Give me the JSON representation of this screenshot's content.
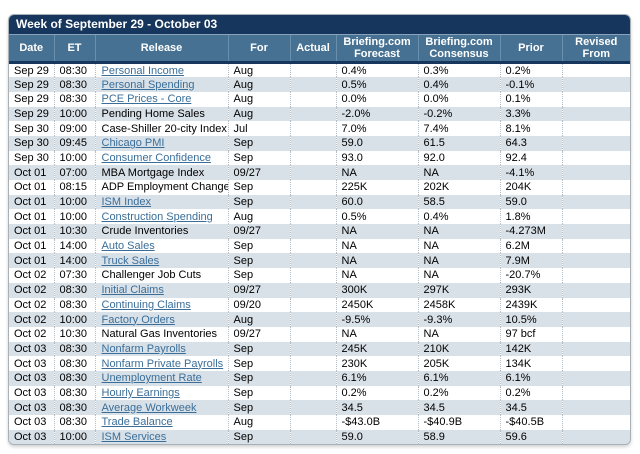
{
  "colors": {
    "title_bar": "#16365d",
    "header_bar": "#467192",
    "row_stripe": "#d9e1e8",
    "link": "#3a6e99"
  },
  "table": {
    "title": "Week of September 29 - October 03",
    "columns": [
      {
        "key": "date",
        "label": "Date"
      },
      {
        "key": "et",
        "label": "ET"
      },
      {
        "key": "release",
        "label": "Release"
      },
      {
        "key": "for",
        "label": "For"
      },
      {
        "key": "actual",
        "label": "Actual"
      },
      {
        "key": "forecast",
        "label": "Briefing.com Forecast"
      },
      {
        "key": "consensus",
        "label": "Briefing.com Consensus"
      },
      {
        "key": "prior",
        "label": "Prior"
      },
      {
        "key": "revised",
        "label": "Revised From"
      }
    ],
    "rows": [
      {
        "date": "Sep 29",
        "et": "08:30",
        "release": "Personal Income",
        "link": true,
        "for": "Aug",
        "actual": "",
        "forecast": "0.4%",
        "consensus": "0.3%",
        "prior": "0.2%",
        "revised": ""
      },
      {
        "date": "Sep 29",
        "et": "08:30",
        "release": "Personal Spending",
        "link": true,
        "for": "Aug",
        "actual": "",
        "forecast": "0.5%",
        "consensus": "0.4%",
        "prior": "-0.1%",
        "revised": ""
      },
      {
        "date": "Sep 29",
        "et": "08:30",
        "release": "PCE Prices - Core",
        "link": true,
        "for": "Aug",
        "actual": "",
        "forecast": "0.0%",
        "consensus": "0.0%",
        "prior": "0.1%",
        "revised": ""
      },
      {
        "date": "Sep 29",
        "et": "10:00",
        "release": "Pending Home Sales",
        "link": false,
        "for": "Aug",
        "actual": "",
        "forecast": "-2.0%",
        "consensus": "-0.2%",
        "prior": "3.3%",
        "revised": ""
      },
      {
        "date": "Sep 30",
        "et": "09:00",
        "release": "Case-Shiller 20-city Index",
        "link": false,
        "for": "Jul",
        "actual": "",
        "forecast": "7.0%",
        "consensus": "7.4%",
        "prior": "8.1%",
        "revised": ""
      },
      {
        "date": "Sep 30",
        "et": "09:45",
        "release": "Chicago PMI",
        "link": true,
        "for": "Sep",
        "actual": "",
        "forecast": "59.0",
        "consensus": "61.5",
        "prior": "64.3",
        "revised": ""
      },
      {
        "date": "Sep 30",
        "et": "10:00",
        "release": "Consumer Confidence",
        "link": true,
        "for": "Sep",
        "actual": "",
        "forecast": "93.0",
        "consensus": "92.0",
        "prior": "92.4",
        "revised": ""
      },
      {
        "date": "Oct 01",
        "et": "07:00",
        "release": "MBA Mortgage Index",
        "link": false,
        "for": "09/27",
        "actual": "",
        "forecast": "NA",
        "consensus": "NA",
        "prior": "-4.1%",
        "revised": ""
      },
      {
        "date": "Oct 01",
        "et": "08:15",
        "release": "ADP Employment Change",
        "link": false,
        "for": "Sep",
        "actual": "",
        "forecast": "225K",
        "consensus": "202K",
        "prior": "204K",
        "revised": ""
      },
      {
        "date": "Oct 01",
        "et": "10:00",
        "release": "ISM Index",
        "link": true,
        "for": "Sep",
        "actual": "",
        "forecast": "60.0",
        "consensus": "58.5",
        "prior": "59.0",
        "revised": ""
      },
      {
        "date": "Oct 01",
        "et": "10:00",
        "release": "Construction Spending",
        "link": true,
        "for": "Aug",
        "actual": "",
        "forecast": "0.5%",
        "consensus": "0.4%",
        "prior": "1.8%",
        "revised": ""
      },
      {
        "date": "Oct 01",
        "et": "10:30",
        "release": "Crude Inventories",
        "link": false,
        "for": "09/27",
        "actual": "",
        "forecast": "NA",
        "consensus": "NA",
        "prior": "-4.273M",
        "revised": ""
      },
      {
        "date": "Oct 01",
        "et": "14:00",
        "release": "Auto Sales",
        "link": true,
        "for": "Sep",
        "actual": "",
        "forecast": "NA",
        "consensus": "NA",
        "prior": "6.2M",
        "revised": ""
      },
      {
        "date": "Oct 01",
        "et": "14:00",
        "release": "Truck Sales",
        "link": true,
        "for": "Sep",
        "actual": "",
        "forecast": "NA",
        "consensus": "NA",
        "prior": "7.9M",
        "revised": ""
      },
      {
        "date": "Oct 02",
        "et": "07:30",
        "release": "Challenger Job Cuts",
        "link": false,
        "for": "Sep",
        "actual": "",
        "forecast": "NA",
        "consensus": "NA",
        "prior": "-20.7%",
        "revised": ""
      },
      {
        "date": "Oct 02",
        "et": "08:30",
        "release": "Initial Claims",
        "link": true,
        "for": "09/27",
        "actual": "",
        "forecast": "300K",
        "consensus": "297K",
        "prior": "293K",
        "revised": ""
      },
      {
        "date": "Oct 02",
        "et": "08:30",
        "release": "Continuing Claims",
        "link": true,
        "for": "09/20",
        "actual": "",
        "forecast": "2450K",
        "consensus": "2458K",
        "prior": "2439K",
        "revised": ""
      },
      {
        "date": "Oct 02",
        "et": "10:00",
        "release": "Factory Orders",
        "link": true,
        "for": "Aug",
        "actual": "",
        "forecast": "-9.5%",
        "consensus": "-9.3%",
        "prior": "10.5%",
        "revised": ""
      },
      {
        "date": "Oct 02",
        "et": "10:30",
        "release": "Natural Gas Inventories",
        "link": false,
        "for": "09/27",
        "actual": "",
        "forecast": "NA",
        "consensus": "NA",
        "prior": "97 bcf",
        "revised": ""
      },
      {
        "date": "Oct 03",
        "et": "08:30",
        "release": "Nonfarm Payrolls",
        "link": true,
        "for": "Sep",
        "actual": "",
        "forecast": "245K",
        "consensus": "210K",
        "prior": "142K",
        "revised": ""
      },
      {
        "date": "Oct 03",
        "et": "08:30",
        "release": "Nonfarm Private Payrolls",
        "link": true,
        "for": "Sep",
        "actual": "",
        "forecast": "230K",
        "consensus": "205K",
        "prior": "134K",
        "revised": ""
      },
      {
        "date": "Oct 03",
        "et": "08:30",
        "release": "Unemployment Rate",
        "link": true,
        "for": "Sep",
        "actual": "",
        "forecast": "6.1%",
        "consensus": "6.1%",
        "prior": "6.1%",
        "revised": ""
      },
      {
        "date": "Oct 03",
        "et": "08:30",
        "release": "Hourly Earnings",
        "link": true,
        "for": "Sep",
        "actual": "",
        "forecast": "0.2%",
        "consensus": "0.2%",
        "prior": "0.2%",
        "revised": ""
      },
      {
        "date": "Oct 03",
        "et": "08:30",
        "release": "Average Workweek",
        "link": true,
        "for": "Sep",
        "actual": "",
        "forecast": "34.5",
        "consensus": "34.5",
        "prior": "34.5",
        "revised": ""
      },
      {
        "date": "Oct 03",
        "et": "08:30",
        "release": "Trade Balance",
        "link": true,
        "for": "Aug",
        "actual": "",
        "forecast": "-$43.0B",
        "consensus": "-$40.9B",
        "prior": "-$40.5B",
        "revised": ""
      },
      {
        "date": "Oct 03",
        "et": "10:00",
        "release": "ISM Services",
        "link": true,
        "for": "Sep",
        "actual": "",
        "forecast": "59.0",
        "consensus": "58.9",
        "prior": "59.6",
        "revised": ""
      }
    ]
  }
}
